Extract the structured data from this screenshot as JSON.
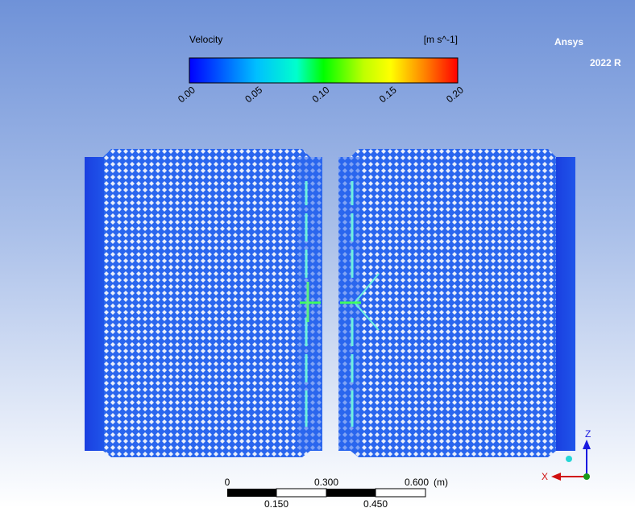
{
  "legend": {
    "title": "Velocity",
    "unit": "[m s^-1]",
    "ticks": [
      "0.00",
      "0.05",
      "0.10",
      "0.15",
      "0.20"
    ]
  },
  "logo": {
    "brand": "Ansys",
    "version": "2022 R"
  },
  "scale_bar": {
    "top_labels": [
      "0",
      "0.300",
      "0.600"
    ],
    "unit": "(m)",
    "bottom_labels": [
      "0.150",
      "0.450"
    ]
  },
  "triad": {
    "z": "Z",
    "x": "X"
  }
}
